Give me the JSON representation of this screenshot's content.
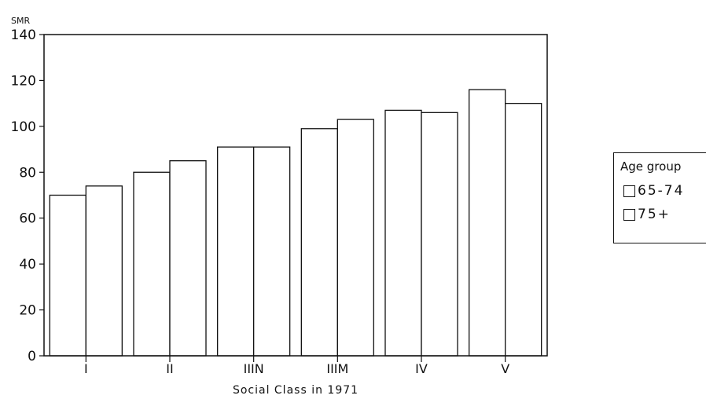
{
  "chart_data": {
    "type": "bar",
    "title": "",
    "ylabel": "SMR",
    "xlabel": "Social Class in 1971",
    "ylim": [
      0,
      140
    ],
    "yticks": [
      "0",
      "20",
      "40",
      "60",
      "80",
      "100",
      "120",
      "140"
    ],
    "categories": [
      "I",
      "II",
      "IIIN",
      "IIIM",
      "IV",
      "V"
    ],
    "legend_title": "Age group",
    "legend_position": "right",
    "grid": false,
    "series": [
      {
        "name": "65-74",
        "values": [
          70,
          80,
          91,
          99,
          107,
          116
        ]
      },
      {
        "name": "75+",
        "values": [
          74,
          85,
          91,
          103,
          106,
          110
        ]
      }
    ]
  }
}
